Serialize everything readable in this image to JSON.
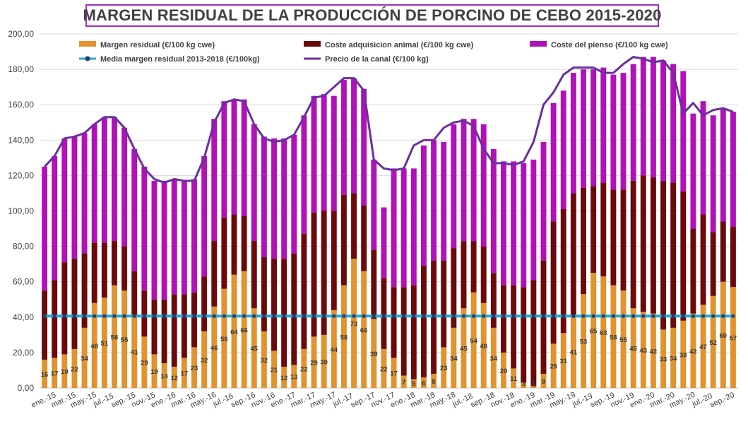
{
  "chart_data": {
    "type": "bar",
    "title": "MARGEN RESIDUAL DE LA PRODUCCIÓN DE PORCINO DE CEBO 2015-2020",
    "stacked": true,
    "ylim": [
      0,
      200
    ],
    "ytick_values": [
      0,
      20,
      40,
      60,
      80,
      100,
      120,
      140,
      160,
      180,
      200
    ],
    "ytick_labels": [
      "0,00",
      "20,00",
      "40,00",
      "60,00",
      "80,00",
      "100,00",
      "120,00",
      "140,00",
      "160,00",
      "180,00",
      "200,00"
    ],
    "grid": true,
    "legend_position": "top",
    "xtick_labels": [
      "ene.-15",
      "mar.-15",
      "may.-15",
      "jul.-15",
      "sep.-15",
      "nov.-15",
      "ene.-16",
      "mar.-16",
      "may.-16",
      "jul.-16",
      "sep.-16",
      "nov.-16",
      "ene.-17",
      "mar.-17",
      "may.-17",
      "jul.-17",
      "sep.-17",
      "nov.-17",
      "ene.-18",
      "mar.-18",
      "may.-18",
      "jul.-18",
      "sep.-18",
      "nov.-18",
      "ene.-19",
      "mar.-19",
      "may.-19",
      "jul.-19",
      "sep.-19",
      "nov.-19",
      "ene.-20",
      "mar.-20",
      "may.-20",
      "jul.-20",
      "sep.-20"
    ],
    "series": [
      {
        "name": "Margen residual (€/100 kg cwe)",
        "kind": "bar",
        "color": "#e0932e",
        "values": [
          16,
          17,
          19,
          22,
          34,
          48,
          51,
          58,
          55,
          41,
          29,
          19,
          14,
          12,
          17,
          23,
          32,
          46,
          56,
          64,
          66,
          45,
          32,
          21,
          12,
          13,
          22,
          29,
          30,
          44,
          58,
          73,
          66,
          39,
          22,
          17,
          7,
          5,
          6,
          8,
          23,
          34,
          45,
          54,
          48,
          34,
          20,
          11,
          3,
          1,
          8,
          25,
          31,
          41,
          53,
          65,
          63,
          58,
          55,
          45,
          43,
          42,
          33,
          34,
          38,
          42,
          47,
          52,
          60,
          57
        ],
        "labels": [
          "16",
          "17",
          "19",
          "22",
          "34",
          "48",
          "51",
          "58",
          "55",
          "41",
          "29",
          "19",
          "14",
          "12",
          "17",
          "23",
          "32",
          "46",
          "56",
          "64",
          "66",
          "45",
          "32",
          "21",
          "12",
          "13",
          "22",
          "29",
          "30",
          "44",
          "58",
          "73",
          "66",
          "39",
          "22",
          "17",
          "7",
          "5",
          "6",
          "8",
          "23",
          "34",
          "45",
          "54",
          "48",
          "34",
          "20",
          "11",
          "3",
          "1",
          "8",
          "25",
          "31",
          "41",
          "53",
          "65",
          "63",
          "58",
          "55",
          "45",
          "43",
          "42",
          "33",
          "34",
          "38",
          "42",
          "47",
          "52",
          "60",
          "57"
        ]
      },
      {
        "name": "Coste adquisicion animal (€/100 kg cwe)",
        "kind": "bar",
        "color": "#6b0a0a",
        "values": [
          39,
          44,
          52,
          51,
          42,
          34,
          31,
          25,
          25,
          25,
          26,
          31,
          36,
          41,
          36,
          31,
          31,
          37,
          40,
          34,
          31,
          38,
          42,
          52,
          61,
          63,
          65,
          70,
          70,
          56,
          51,
          37,
          37,
          39,
          40,
          40,
          50,
          53,
          63,
          64,
          49,
          45,
          38,
          29,
          32,
          31,
          38,
          47,
          54,
          60,
          64,
          69,
          70,
          69,
          60,
          49,
          53,
          54,
          57,
          72,
          77,
          77,
          84,
          82,
          73,
          48,
          51,
          36,
          34,
          34
        ]
      },
      {
        "name": "Coste del pienso (€/100 kg cwe)",
        "kind": "bar",
        "color": "#b012b8",
        "values": [
          70,
          70,
          70,
          69,
          68,
          67,
          71,
          70,
          67,
          69,
          70,
          67,
          67,
          65,
          64,
          64,
          68,
          69,
          66,
          65,
          66,
          66,
          68,
          68,
          68,
          67,
          67,
          66,
          66,
          65,
          65,
          65,
          66,
          51,
          40,
          67,
          67,
          66,
          68,
          68,
          67,
          70,
          69,
          69,
          69,
          70,
          70,
          70,
          70,
          68,
          67,
          67,
          67,
          68,
          67,
          66,
          65,
          65,
          66,
          66,
          67,
          68,
          68,
          67,
          68,
          65,
          64,
          66,
          64,
          65
        ]
      },
      {
        "name": "Media margen residual 2013-2018 (€/100kg)",
        "kind": "line",
        "color": "#2aa8c8",
        "marker_color": "#1f3e7a",
        "values": [
          40.6,
          40.6,
          40.6,
          40.6,
          40.6,
          40.6,
          40.6,
          40.6,
          40.6,
          40.6,
          40.6,
          40.6,
          40.6,
          40.6,
          40.6,
          40.6,
          40.6,
          40.6,
          40.6,
          40.6,
          40.6,
          40.6,
          40.6,
          40.6,
          40.6,
          40.6,
          40.6,
          40.6,
          40.6,
          40.6,
          40.6,
          40.6,
          40.6,
          40.6,
          40.6,
          40.6,
          40.6,
          40.6,
          40.6,
          40.6,
          40.6,
          40.6,
          40.6,
          40.6,
          40.6,
          40.6,
          40.6,
          40.6,
          40.6,
          40.6,
          40.6,
          40.6,
          40.6,
          40.6,
          40.6,
          40.6,
          40.6,
          40.6,
          40.6,
          40.6,
          40.6,
          40.6,
          40.6,
          40.6,
          40.6,
          40.6,
          40.6,
          40.6,
          40.6,
          40.6
        ]
      },
      {
        "name": "Precio de la canal (€/100 kg)",
        "kind": "line",
        "color": "#6a2fa0",
        "values": [
          125,
          131,
          141,
          142,
          144,
          149,
          153,
          153,
          147,
          135,
          124,
          118,
          116,
          118,
          117,
          117,
          130,
          150,
          161,
          163,
          162,
          149,
          141,
          139,
          140,
          143,
          153,
          164,
          165,
          170,
          175,
          175,
          168,
          129,
          124,
          123,
          124,
          137,
          140,
          140,
          147,
          150,
          151,
          148,
          135,
          127,
          127,
          126,
          128,
          139,
          160,
          167,
          177,
          181,
          181,
          181,
          178,
          178,
          183,
          187,
          186,
          184,
          185,
          178,
          155,
          161,
          154,
          157,
          158,
          156
        ]
      }
    ]
  }
}
